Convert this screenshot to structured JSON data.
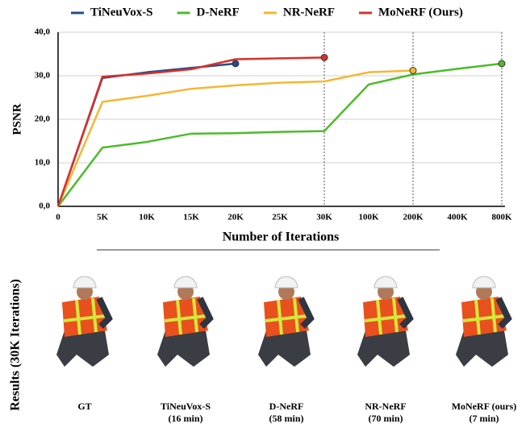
{
  "chart_data": {
    "type": "line",
    "x_label": "Number of Iterations",
    "y_label": "PSNR",
    "categories": [
      "0",
      "5K",
      "10K",
      "15K",
      "20K",
      "25K",
      "30K",
      "100K",
      "200K",
      "400K",
      "800K"
    ],
    "series": [
      {
        "name": "TiNeuVox-S",
        "color": "#1f4e8c",
        "values": [
          0,
          29.5,
          30.8,
          31.8,
          32.8,
          null,
          null,
          null,
          null,
          null,
          null
        ]
      },
      {
        "name": "D-NeRF",
        "color": "#4cbb2a",
        "values": [
          0,
          13.5,
          14.8,
          16.7,
          16.8,
          17.1,
          17.3,
          28,
          30.3,
          31.6,
          32.8
        ]
      },
      {
        "name": "NR-NeRF",
        "color": "#f5b731",
        "values": [
          0,
          24,
          25.4,
          27,
          27.8,
          28.4,
          28.7,
          30.8,
          31.2,
          null,
          null
        ]
      },
      {
        "name": "MoNeRF (Ours)",
        "color": "#d9302a",
        "values": [
          0,
          29.8,
          30.5,
          31.5,
          33.8,
          34,
          34.2,
          null,
          null,
          null,
          null
        ]
      }
    ],
    "ylim": [
      0,
      40
    ],
    "yticks": [
      {
        "value": 0,
        "label": "0,0"
      },
      {
        "value": 10,
        "label": "10,0"
      },
      {
        "value": 20,
        "label": "20,0"
      },
      {
        "value": 30,
        "label": "30,0"
      },
      {
        "value": 40,
        "label": "40,0"
      }
    ],
    "grid": true,
    "legend": "top"
  },
  "results": {
    "title": "Results (30K Iterations)",
    "items": [
      {
        "name": "GT"
      },
      {
        "name": "TiNeuVox-S",
        "time": "(16 min)"
      },
      {
        "name": "D-NeRF",
        "time": "(58 min)"
      },
      {
        "name": "NR-NeRF",
        "time": "(70 min)"
      },
      {
        "name": "MoNeRF (ours)",
        "time": "(7 min)"
      }
    ]
  }
}
